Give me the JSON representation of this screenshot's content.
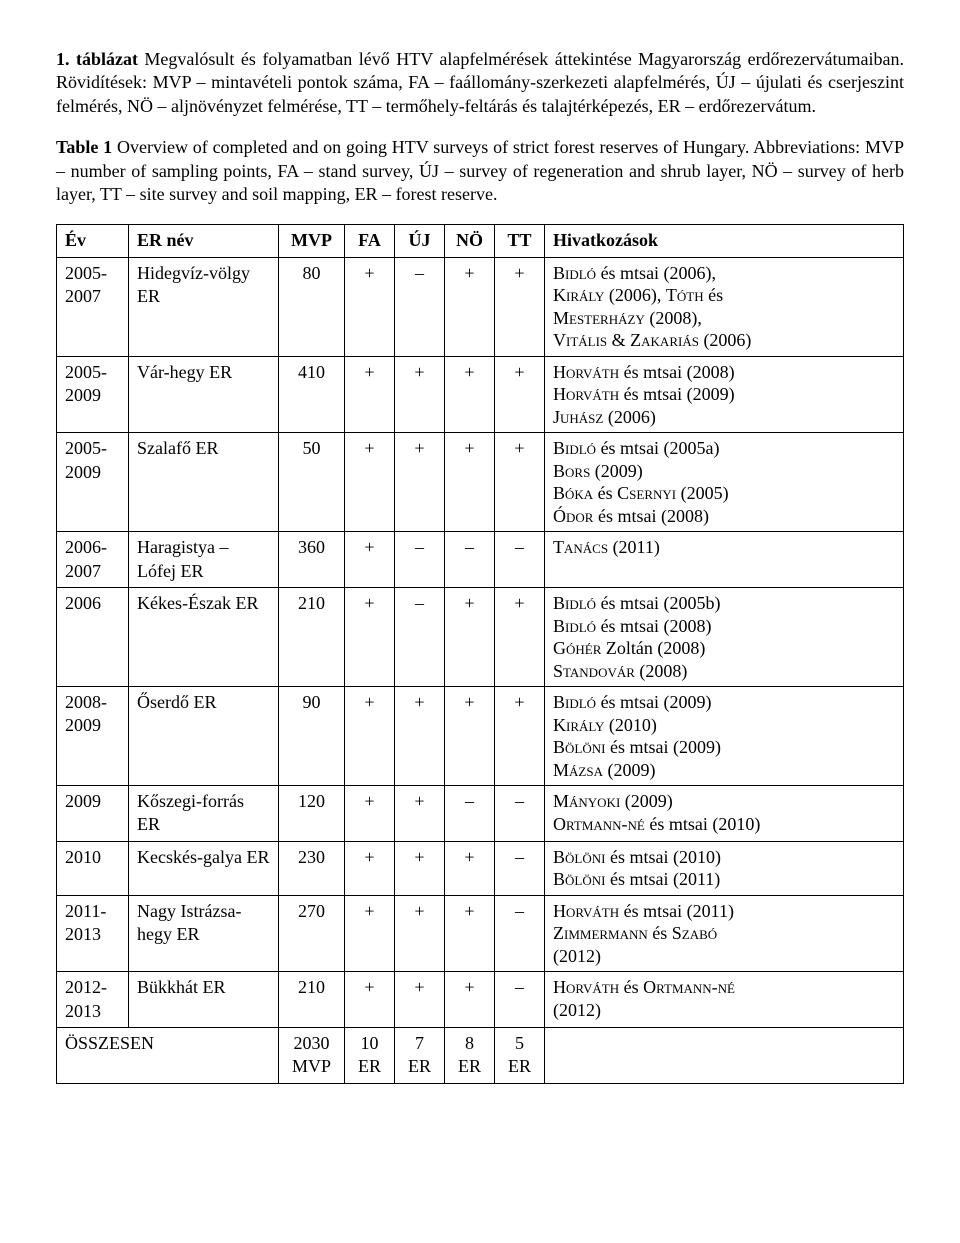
{
  "para1": {
    "labelBold": "1. táblázat",
    "rest": " Megvalósult és folyamatban lévő HTV alapfelmérések áttekintése Magyarország erdőrezervátumaiban. Rövidítések: MVP – mintavételi pontok száma, FA – faállomány-szerkezeti alapfelmérés, ÚJ – újulati és cserjeszint felmérés, NÖ – aljnövényzet felmérése, TT – termőhely-feltárás és talajtérképezés, ER – erdőrezervátum."
  },
  "para2": {
    "labelBold": "Table 1",
    "rest": " Overview of completed and on going HTV surveys of strict forest reserves of Hungary. Abbreviations: MVP – number of sampling points, FA – stand survey, ÚJ – survey of regeneration and shrub layer, NÖ – survey of herb layer, TT – site survey and soil mapping, ER – forest reserve."
  },
  "table": {
    "headers": {
      "ev": "Év",
      "name": "ER név",
      "mvp": "MVP",
      "fa": "FA",
      "uj": "ÚJ",
      "no": "NÖ",
      "tt": "TT",
      "refs": "Hivatkozások"
    },
    "rows": [
      {
        "ev": "2005-2007",
        "name": "Hidegvíz-völgy ER",
        "mvp": "80",
        "fa": "+",
        "uj": "–",
        "no": "+",
        "tt": "+",
        "refs": [
          {
            "sc": "Bidló",
            "rest": " és mtsai (2006),"
          },
          {
            "sc": "Király",
            "rest": " (2006), ",
            "sc2": "Tóth",
            "rest2": " és"
          },
          {
            "sc": "Mesterházy",
            "rest": " (2008),"
          },
          {
            "sc": "Vitális & Zakariás",
            "rest": " (2006)"
          }
        ]
      },
      {
        "ev": "2005-2009",
        "name": "Vár-hegy ER",
        "mvp": "410",
        "fa": "+",
        "uj": "+",
        "no": "+",
        "tt": "+",
        "refs": [
          {
            "sc": "Horváth",
            "rest": " és mtsai (2008)"
          },
          {
            "sc": "Horváth",
            "rest": " és mtsai (2009)"
          },
          {
            "sc": "Juhász",
            "rest": " (2006)"
          }
        ]
      },
      {
        "ev": "2005-2009",
        "name": "Szalafő ER",
        "mvp": "50",
        "fa": "+",
        "uj": "+",
        "no": "+",
        "tt": "+",
        "refs": [
          {
            "sc": "Bidló",
            "rest": " és mtsai (2005a)"
          },
          {
            "sc": "Bors",
            "rest": " (2009)"
          },
          {
            "sc": "Bóka",
            "rest": " és ",
            "sc2": "Csernyi",
            "rest2": " (2005)"
          },
          {
            "sc": "Ódor",
            "rest": " és mtsai (2008)"
          }
        ]
      },
      {
        "ev": "2006-2007",
        "name": "Haragistya – Lófej ER",
        "mvp": "360",
        "fa": "+",
        "uj": "–",
        "no": "–",
        "tt": "–",
        "refs": [
          {
            "sc": "Tanács",
            "rest": " (2011)"
          }
        ]
      },
      {
        "ev": "2006",
        "name": "Kékes-Észak ER",
        "mvp": "210",
        "fa": "+",
        "uj": "–",
        "no": "+",
        "tt": "+",
        "refs": [
          {
            "sc": "Bidló",
            "rest": " és mtsai (2005b)"
          },
          {
            "sc": "Bidló",
            "rest": " és mtsai (2008)"
          },
          {
            "sc": "Góhér",
            "rest": " Zoltán (2008)"
          },
          {
            "sc": "Standovár",
            "rest": " (2008)"
          }
        ]
      },
      {
        "ev": "2008-2009",
        "name": "Őserdő ER",
        "mvp": "90",
        "fa": "+",
        "uj": "+",
        "no": "+",
        "tt": "+",
        "refs": [
          {
            "sc": "Bidló",
            "rest": " és mtsai (2009)"
          },
          {
            "sc": "Király",
            "rest": " (2010)"
          },
          {
            "sc": "Bölöni",
            "rest": " és mtsai (2009)"
          },
          {
            "sc": "Mázsa",
            "rest": " (2009)"
          }
        ]
      },
      {
        "ev": "2009",
        "name": "Kőszegi-forrás ER",
        "mvp": "120",
        "fa": "+",
        "uj": "+",
        "no": "–",
        "tt": "–",
        "refs": [
          {
            "sc": "Mányoki",
            "rest": " (2009)"
          },
          {
            "sc": "Ortmann-né",
            "rest": " és mtsai (2010)"
          }
        ]
      },
      {
        "ev": "2010",
        "name": "Kecskés-galya ER",
        "mvp": "230",
        "fa": "+",
        "uj": "+",
        "no": "+",
        "tt": "–",
        "refs": [
          {
            "sc": "Bölöni",
            "rest": " és mtsai (2010)"
          },
          {
            "sc": "Bölöni",
            "rest": " és mtsai (2011)"
          }
        ]
      },
      {
        "ev": "2011-2013",
        "name": "Nagy Istrázsa-hegy ER",
        "mvp": "270",
        "fa": "+",
        "uj": "+",
        "no": "+",
        "tt": "–",
        "refs": [
          {
            "sc": "Horváth",
            "rest": " és mtsai (2011)"
          },
          {
            "sc": "Zimmermann",
            "rest": " és ",
            "sc2": "Szabó",
            "rest2": ""
          },
          {
            "plain": "(2012)"
          }
        ]
      },
      {
        "ev": "2012-2013",
        "name": "Bükkhát ER",
        "mvp": "210",
        "fa": "+",
        "uj": "+",
        "no": "+",
        "tt": "–",
        "refs": [
          {
            "sc": "Horváth",
            "rest": " és ",
            "sc2": "Ortmann-né",
            "rest2": ""
          },
          {
            "plain": "(2012)"
          }
        ]
      }
    ],
    "total": {
      "label": "ÖSSZESEN",
      "mvp": "2030\nMVP",
      "fa": "10\nER",
      "uj": "7\nER",
      "no": "8\nER",
      "tt": "5\nER",
      "refs": ""
    }
  }
}
